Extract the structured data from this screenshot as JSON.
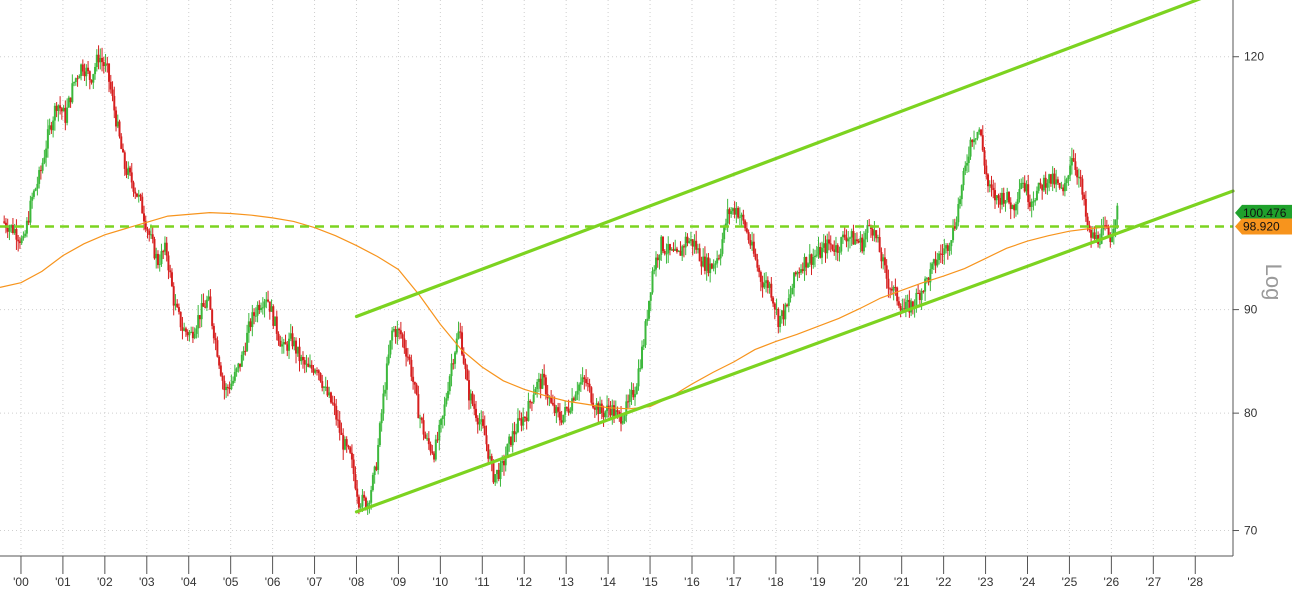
{
  "chart_data": {
    "type": "line",
    "scale": "Log",
    "x_labels": [
      "'00",
      "'01",
      "'02",
      "'03",
      "'04",
      "'05",
      "'06",
      "'07",
      "'08",
      "'09",
      "'10",
      "'11",
      "'12",
      "'13",
      "'14",
      "'15",
      "'16",
      "'17",
      "'18",
      "'19",
      "'20",
      "'21",
      "'22",
      "'23",
      "'24",
      "'25",
      "'26",
      "'27",
      "'28"
    ],
    "x_range": [
      1999.5,
      2028.9
    ],
    "y_ticks": [
      70,
      80,
      90,
      120
    ],
    "y_tick_labels": [
      "70",
      "80",
      "90",
      "120"
    ],
    "ylim": [
      68,
      128
    ],
    "grid": true,
    "price_anchors": [
      [
        1999.6,
        99.5
      ],
      [
        1999.9,
        98.5
      ],
      [
        2000.1,
        97.0
      ],
      [
        2000.3,
        102.0
      ],
      [
        2000.5,
        105.0
      ],
      [
        2000.7,
        110.0
      ],
      [
        2000.9,
        114.0
      ],
      [
        2001.1,
        112.0
      ],
      [
        2001.3,
        116.5
      ],
      [
        2001.5,
        119.0
      ],
      [
        2001.7,
        117.0
      ],
      [
        2001.9,
        120.2
      ],
      [
        2002.1,
        118.0
      ],
      [
        2002.3,
        112.0
      ],
      [
        2002.5,
        106.0
      ],
      [
        2002.7,
        104.0
      ],
      [
        2002.9,
        101.5
      ],
      [
        2003.1,
        98.0
      ],
      [
        2003.3,
        95.0
      ],
      [
        2003.5,
        96.5
      ],
      [
        2003.7,
        90.5
      ],
      [
        2003.9,
        88.0
      ],
      [
        2004.1,
        87.5
      ],
      [
        2004.3,
        89.5
      ],
      [
        2004.5,
        91.0
      ],
      [
        2004.7,
        86.5
      ],
      [
        2004.9,
        82.0
      ],
      [
        2005.1,
        83.0
      ],
      [
        2005.3,
        85.0
      ],
      [
        2005.5,
        88.5
      ],
      [
        2005.7,
        90.5
      ],
      [
        2005.9,
        91.5
      ],
      [
        2006.1,
        88.5
      ],
      [
        2006.3,
        86.0
      ],
      [
        2006.5,
        87.0
      ],
      [
        2006.7,
        85.0
      ],
      [
        2006.9,
        84.0
      ],
      [
        2007.1,
        84.5
      ],
      [
        2007.3,
        82.0
      ],
      [
        2007.5,
        80.5
      ],
      [
        2007.7,
        77.5
      ],
      [
        2007.9,
        76.0
      ],
      [
        2008.1,
        72.5
      ],
      [
        2008.3,
        72.2
      ],
      [
        2008.5,
        75.0
      ],
      [
        2008.7,
        82.0
      ],
      [
        2008.9,
        88.0
      ],
      [
        2009.1,
        87.5
      ],
      [
        2009.3,
        85.0
      ],
      [
        2009.5,
        80.5
      ],
      [
        2009.7,
        77.5
      ],
      [
        2009.9,
        76.5
      ],
      [
        2010.1,
        79.5
      ],
      [
        2010.3,
        84.5
      ],
      [
        2010.5,
        88.0
      ],
      [
        2010.7,
        82.0
      ],
      [
        2010.9,
        80.0
      ],
      [
        2011.1,
        78.0
      ],
      [
        2011.3,
        74.5
      ],
      [
        2011.5,
        75.0
      ],
      [
        2011.7,
        77.5
      ],
      [
        2011.9,
        79.0
      ],
      [
        2012.1,
        80.0
      ],
      [
        2012.3,
        82.5
      ],
      [
        2012.5,
        83.0
      ],
      [
        2012.7,
        80.5
      ],
      [
        2012.9,
        79.5
      ],
      [
        2013.1,
        80.5
      ],
      [
        2013.3,
        82.5
      ],
      [
        2013.5,
        83.0
      ],
      [
        2013.7,
        81.0
      ],
      [
        2013.9,
        80.0
      ],
      [
        2014.1,
        80.5
      ],
      [
        2014.3,
        79.5
      ],
      [
        2014.5,
        80.5
      ],
      [
        2014.7,
        82.5
      ],
      [
        2014.9,
        87.0
      ],
      [
        2015.1,
        94.0
      ],
      [
        2015.3,
        97.0
      ],
      [
        2015.5,
        96.0
      ],
      [
        2015.7,
        95.5
      ],
      [
        2015.9,
        97.5
      ],
      [
        2016.1,
        97.0
      ],
      [
        2016.3,
        95.0
      ],
      [
        2016.5,
        94.5
      ],
      [
        2016.7,
        96.0
      ],
      [
        2016.9,
        100.5
      ],
      [
        2017.1,
        101.0
      ],
      [
        2017.3,
        99.0
      ],
      [
        2017.5,
        96.0
      ],
      [
        2017.7,
        93.0
      ],
      [
        2017.9,
        92.5
      ],
      [
        2018.1,
        89.0
      ],
      [
        2018.3,
        90.0
      ],
      [
        2018.5,
        93.5
      ],
      [
        2018.7,
        95.0
      ],
      [
        2018.9,
        95.5
      ],
      [
        2019.1,
        96.0
      ],
      [
        2019.3,
        97.0
      ],
      [
        2019.5,
        96.5
      ],
      [
        2019.7,
        98.0
      ],
      [
        2019.9,
        97.5
      ],
      [
        2020.1,
        97.0
      ],
      [
        2020.3,
        99.5
      ],
      [
        2020.5,
        96.5
      ],
      [
        2020.7,
        93.0
      ],
      [
        2020.9,
        91.5
      ],
      [
        2021.1,
        90.0
      ],
      [
        2021.3,
        90.5
      ],
      [
        2021.5,
        92.0
      ],
      [
        2021.7,
        93.5
      ],
      [
        2021.9,
        95.5
      ],
      [
        2022.1,
        96.5
      ],
      [
        2022.3,
        99.0
      ],
      [
        2022.5,
        104.0
      ],
      [
        2022.7,
        109.5
      ],
      [
        2022.9,
        110.5
      ],
      [
        2023.1,
        103.5
      ],
      [
        2023.3,
        102.0
      ],
      [
        2023.5,
        102.5
      ],
      [
        2023.7,
        101.0
      ],
      [
        2023.9,
        104.5
      ],
      [
        2024.1,
        102.0
      ],
      [
        2024.3,
        103.0
      ],
      [
        2024.5,
        104.5
      ],
      [
        2024.7,
        104.0
      ],
      [
        2024.9,
        102.5
      ],
      [
        2025.1,
        107.5
      ],
      [
        2025.3,
        104.0
      ],
      [
        2025.5,
        98.0
      ],
      [
        2025.7,
        97.5
      ],
      [
        2025.9,
        98.5
      ],
      [
        2026.0,
        97.5
      ],
      [
        2026.15,
        100.5
      ]
    ],
    "moving_average_anchors": [
      [
        1999.5,
        92.3
      ],
      [
        2000.0,
        92.8
      ],
      [
        2000.5,
        94.0
      ],
      [
        2001.0,
        95.7
      ],
      [
        2001.5,
        97.0
      ],
      [
        2002.0,
        98.0
      ],
      [
        2002.5,
        98.7
      ],
      [
        2003.0,
        99.4
      ],
      [
        2003.5,
        100.1
      ],
      [
        2004.0,
        100.3
      ],
      [
        2004.5,
        100.5
      ],
      [
        2005.0,
        100.4
      ],
      [
        2005.5,
        100.2
      ],
      [
        2006.0,
        99.9
      ],
      [
        2006.5,
        99.5
      ],
      [
        2007.0,
        98.8
      ],
      [
        2007.5,
        97.9
      ],
      [
        2008.0,
        96.8
      ],
      [
        2008.5,
        95.6
      ],
      [
        2009.0,
        94.2
      ],
      [
        2009.5,
        91.5
      ],
      [
        2010.0,
        88.5
      ],
      [
        2010.5,
        86.0
      ],
      [
        2011.0,
        84.3
      ],
      [
        2011.5,
        83.0
      ],
      [
        2012.0,
        82.2
      ],
      [
        2012.5,
        81.6
      ],
      [
        2013.0,
        81.1
      ],
      [
        2013.5,
        80.8
      ],
      [
        2014.0,
        80.5
      ],
      [
        2014.5,
        80.4
      ],
      [
        2015.0,
        80.6
      ],
      [
        2015.5,
        81.5
      ],
      [
        2016.0,
        82.7
      ],
      [
        2016.5,
        83.8
      ],
      [
        2017.0,
        84.8
      ],
      [
        2017.5,
        86.0
      ],
      [
        2018.0,
        86.8
      ],
      [
        2018.5,
        87.5
      ],
      [
        2019.0,
        88.3
      ],
      [
        2019.5,
        89.1
      ],
      [
        2020.0,
        90.1
      ],
      [
        2020.5,
        91.2
      ],
      [
        2021.0,
        92.0
      ],
      [
        2021.5,
        92.8
      ],
      [
        2022.0,
        93.5
      ],
      [
        2022.5,
        94.3
      ],
      [
        2023.0,
        95.4
      ],
      [
        2023.5,
        96.5
      ],
      [
        2024.0,
        97.3
      ],
      [
        2024.5,
        97.9
      ],
      [
        2025.0,
        98.4
      ],
      [
        2025.5,
        98.7
      ],
      [
        2026.0,
        98.9
      ]
    ],
    "channel_lines": [
      {
        "name": "upper",
        "from": [
          2008.0,
          89.3
        ],
        "to": [
          2028.9,
          130.0
        ]
      },
      {
        "name": "lower",
        "from": [
          2008.0,
          71.5
        ],
        "to": [
          2028.9,
          103.0
        ]
      }
    ],
    "horizontal_line": {
      "y": 98.92
    },
    "last_values": [
      {
        "text": "100.476",
        "value": 100.476,
        "color": "#1fa12c"
      },
      {
        "text": "98.920",
        "value": 98.92,
        "color": "#f7941d"
      }
    ],
    "colors": {
      "up": "#3cb83c",
      "down": "#d61f1f",
      "ma": "#f7941d",
      "channel": "#7cd320",
      "grid": "#cfcfcf"
    }
  }
}
